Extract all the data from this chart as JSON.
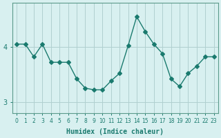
{
  "x": [
    0,
    1,
    2,
    3,
    4,
    5,
    6,
    7,
    8,
    9,
    10,
    11,
    12,
    13,
    14,
    15,
    16,
    17,
    18,
    19,
    20,
    21,
    22,
    23
  ],
  "y": [
    4.05,
    4.05,
    3.82,
    4.05,
    3.72,
    3.72,
    3.72,
    3.42,
    3.25,
    3.22,
    3.22,
    3.38,
    3.52,
    4.02,
    4.55,
    4.28,
    4.05,
    3.88,
    3.42,
    3.28,
    3.52,
    3.65,
    3.82,
    3.82
  ],
  "line_color": "#1a7a6e",
  "marker": "D",
  "marker_size": 3,
  "bg_color": "#d8f0f0",
  "grid_color": "#b0d0d0",
  "xlabel": "Humidex (Indice chaleur)",
  "yticks": [
    3,
    4
  ],
  "xlim": [
    -0.5,
    23.5
  ],
  "ylim": [
    2.8,
    4.8
  ]
}
